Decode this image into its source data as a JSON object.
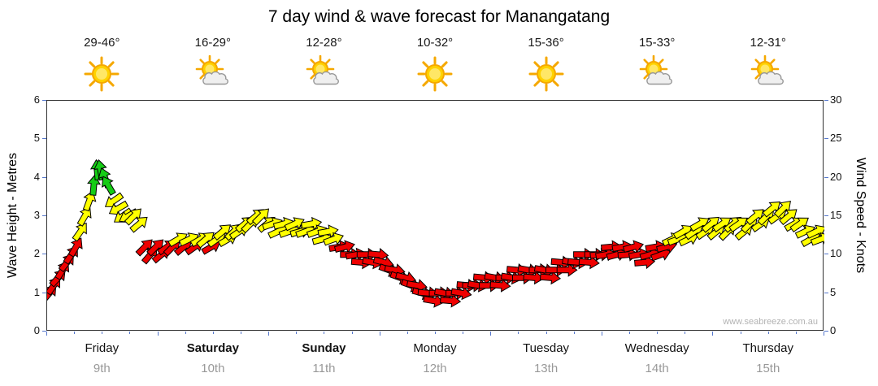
{
  "title": "7 day wind & wave forecast for Manangatang",
  "watermark": "www.seabreeze.com.au",
  "axes": {
    "left_label": "Wave Height - Metres",
    "right_label": "Wind Speed - Knots",
    "left_ticks": [
      0,
      1,
      2,
      3,
      4,
      5,
      6
    ],
    "right_ticks": [
      0,
      5,
      10,
      15,
      20,
      25,
      30
    ]
  },
  "days": [
    {
      "name": "Friday",
      "date": "9th",
      "temp": "29-46°",
      "icon": "sun",
      "bold": false
    },
    {
      "name": "Saturday",
      "date": "10th",
      "temp": "16-29°",
      "icon": "sun-cloud",
      "bold": true
    },
    {
      "name": "Sunday",
      "date": "11th",
      "temp": "12-28°",
      "icon": "sun-cloud",
      "bold": true
    },
    {
      "name": "Monday",
      "date": "12th",
      "temp": "10-32°",
      "icon": "sun",
      "bold": false
    },
    {
      "name": "Tuesday",
      "date": "13th",
      "temp": "15-36°",
      "icon": "sun",
      "bold": false
    },
    {
      "name": "Wednesday",
      "date": "14th",
      "temp": "15-33°",
      "icon": "sun-cloud",
      "bold": false
    },
    {
      "name": "Thursday",
      "date": "15th",
      "temp": "12-31°",
      "icon": "sun-cloud",
      "bold": false
    }
  ],
  "chart_data": {
    "type": "scatter",
    "subtype": "wind-direction-arrows",
    "title": "7 day wind & wave forecast for Manangatang",
    "x_axis": {
      "unit": "days",
      "range": [
        0,
        7
      ],
      "labels": [
        "Friday 9th",
        "Saturday 10th",
        "Sunday 11th",
        "Monday 12th",
        "Tuesday 13th",
        "Wednesday 14th",
        "Thursday 15th"
      ]
    },
    "y_left": {
      "label": "Wave Height - Metres",
      "range": [
        0,
        6
      ]
    },
    "y_right": {
      "label": "Wind Speed - Knots",
      "range": [
        0,
        30
      ]
    },
    "legend": "arrow colour encodes wind speed band",
    "speed_colors": {
      "light": "#ee0000",
      "moderate": "#ffff00",
      "fresh": "#15cc15"
    },
    "color_thresholds_knots": {
      "moderate_from": 12,
      "fresh_from": 18
    },
    "point_format": "[day_fraction_0to7, wind_speed_knots, arrow_rotation_deg_cw_from_east]",
    "points": [
      [
        0.02,
        5,
        -50
      ],
      [
        0.06,
        6,
        -55
      ],
      [
        0.1,
        7,
        -48
      ],
      [
        0.14,
        8,
        -58
      ],
      [
        0.18,
        9,
        -52
      ],
      [
        0.22,
        10,
        -55
      ],
      [
        0.26,
        11,
        -60
      ],
      [
        0.3,
        13,
        -55
      ],
      [
        0.34,
        15,
        -60
      ],
      [
        0.38,
        17,
        -70
      ],
      [
        0.42,
        19,
        -85
      ],
      [
        0.45,
        21,
        -95
      ],
      [
        0.48,
        21,
        -100
      ],
      [
        0.52,
        20,
        -110
      ],
      [
        0.55,
        19,
        -120
      ],
      [
        0.6,
        17,
        145
      ],
      [
        0.64,
        16,
        150
      ],
      [
        0.68,
        15,
        145
      ],
      [
        0.73,
        15,
        150
      ],
      [
        0.78,
        15,
        -45
      ],
      [
        0.83,
        14,
        -40
      ],
      [
        0.88,
        11,
        -45
      ],
      [
        0.93,
        10,
        -50
      ],
      [
        0.98,
        11,
        -45
      ],
      [
        1.03,
        10,
        -40
      ],
      [
        1.08,
        11,
        -35
      ],
      [
        1.13,
        11,
        -45
      ],
      [
        1.18,
        12,
        -30
      ],
      [
        1.23,
        11,
        -40
      ],
      [
        1.28,
        12,
        -25
      ],
      [
        1.33,
        11,
        -35
      ],
      [
        1.38,
        12,
        -30
      ],
      [
        1.43,
        12,
        -40
      ],
      [
        1.48,
        11,
        -30
      ],
      [
        1.53,
        12,
        -35
      ],
      [
        1.58,
        13,
        -40
      ],
      [
        1.63,
        12,
        -30
      ],
      [
        1.68,
        13,
        -45
      ],
      [
        1.73,
        13,
        -35
      ],
      [
        1.78,
        14,
        -40
      ],
      [
        1.83,
        14,
        -45
      ],
      [
        1.88,
        15,
        -40
      ],
      [
        1.93,
        15,
        -45
      ],
      [
        1.98,
        14,
        -40
      ],
      [
        2.03,
        14,
        -20
      ],
      [
        2.08,
        13,
        -25
      ],
      [
        2.13,
        14,
        -15
      ],
      [
        2.18,
        13,
        -20
      ],
      [
        2.23,
        14,
        -25
      ],
      [
        2.28,
        13,
        -15
      ],
      [
        2.33,
        13,
        -20
      ],
      [
        2.38,
        14,
        -10
      ],
      [
        2.43,
        13,
        -20
      ],
      [
        2.48,
        12,
        -15
      ],
      [
        2.53,
        13,
        -10
      ],
      [
        2.58,
        12,
        -20
      ],
      [
        2.63,
        11,
        -10
      ],
      [
        2.68,
        11,
        -15
      ],
      [
        2.73,
        10,
        0
      ],
      [
        2.78,
        10,
        -10
      ],
      [
        2.83,
        9,
        5
      ],
      [
        2.88,
        10,
        0
      ],
      [
        2.93,
        9,
        10
      ],
      [
        2.98,
        10,
        5
      ],
      [
        3.03,
        9,
        15
      ],
      [
        3.08,
        8,
        20
      ],
      [
        3.13,
        8,
        10
      ],
      [
        3.18,
        7,
        20
      ],
      [
        3.23,
        7,
        15
      ],
      [
        3.28,
        6,
        20
      ],
      [
        3.33,
        6,
        10
      ],
      [
        3.38,
        5,
        15
      ],
      [
        3.43,
        5,
        5
      ],
      [
        3.48,
        4,
        10
      ],
      [
        3.53,
        5,
        0
      ],
      [
        3.58,
        5,
        10
      ],
      [
        3.63,
        4,
        5
      ],
      [
        3.68,
        5,
        0
      ],
      [
        3.73,
        5,
        10
      ],
      [
        3.78,
        6,
        5
      ],
      [
        3.83,
        6,
        0
      ],
      [
        3.88,
        6,
        10
      ],
      [
        3.93,
        7,
        5
      ],
      [
        3.98,
        6,
        0
      ],
      [
        4.03,
        7,
        10
      ],
      [
        4.08,
        6,
        5
      ],
      [
        4.13,
        7,
        0
      ],
      [
        4.18,
        7,
        10
      ],
      [
        4.23,
        8,
        5
      ],
      [
        4.28,
        7,
        0
      ],
      [
        4.33,
        8,
        10
      ],
      [
        4.38,
        7,
        5
      ],
      [
        4.43,
        8,
        0
      ],
      [
        4.48,
        8,
        10
      ],
      [
        4.53,
        7,
        5
      ],
      [
        4.58,
        8,
        0
      ],
      [
        4.63,
        9,
        5
      ],
      [
        4.68,
        8,
        0
      ],
      [
        4.73,
        9,
        10
      ],
      [
        4.78,
        9,
        5
      ],
      [
        4.83,
        10,
        0
      ],
      [
        4.88,
        9,
        5
      ],
      [
        4.93,
        10,
        0
      ],
      [
        4.98,
        10,
        -5
      ],
      [
        5.03,
        10,
        -10
      ],
      [
        5.08,
        11,
        -5
      ],
      [
        5.13,
        10,
        -15
      ],
      [
        5.18,
        11,
        -10
      ],
      [
        5.23,
        10,
        -5
      ],
      [
        5.28,
        11,
        -15
      ],
      [
        5.33,
        10,
        -10
      ],
      [
        5.38,
        9,
        -5
      ],
      [
        5.43,
        10,
        -15
      ],
      [
        5.48,
        11,
        -10
      ],
      [
        5.53,
        10,
        -20
      ],
      [
        5.58,
        11,
        -15
      ],
      [
        5.63,
        12,
        -25
      ],
      [
        5.68,
        12,
        -20
      ],
      [
        5.73,
        13,
        -30
      ],
      [
        5.78,
        12,
        -25
      ],
      [
        5.83,
        13,
        -35
      ],
      [
        5.88,
        14,
        -30
      ],
      [
        5.93,
        13,
        -35
      ],
      [
        5.98,
        14,
        -40
      ],
      [
        6.03,
        13,
        -40
      ],
      [
        6.08,
        14,
        -35
      ],
      [
        6.13,
        13,
        -45
      ],
      [
        6.18,
        14,
        -40
      ],
      [
        6.23,
        14,
        -35
      ],
      [
        6.28,
        13,
        -40
      ],
      [
        6.33,
        14,
        -45
      ],
      [
        6.38,
        15,
        -40
      ],
      [
        6.43,
        14,
        -35
      ],
      [
        6.48,
        15,
        -45
      ],
      [
        6.53,
        16,
        -40
      ],
      [
        6.58,
        15,
        -35
      ],
      [
        6.63,
        16,
        -45
      ],
      [
        6.68,
        15,
        -40
      ],
      [
        6.73,
        14,
        -30
      ],
      [
        6.78,
        14,
        -35
      ],
      [
        6.83,
        13,
        -25
      ],
      [
        6.88,
        12,
        -30
      ],
      [
        6.93,
        13,
        -25
      ],
      [
        6.97,
        12,
        -20
      ]
    ]
  },
  "colors": {
    "tick": "#5577cc",
    "plot_border": "#333333",
    "arrow_outline": "#000000",
    "date_text": "#999999",
    "watermark_text": "#b3b3b3"
  }
}
